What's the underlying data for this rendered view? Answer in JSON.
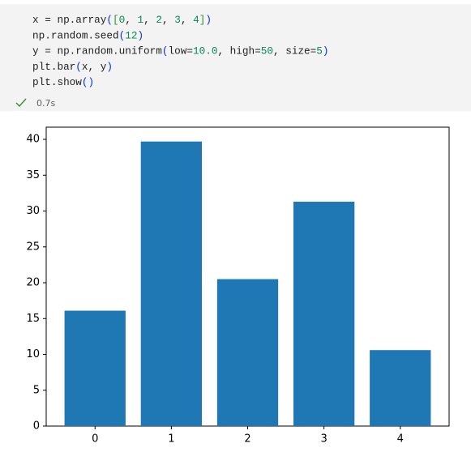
{
  "code": {
    "lines": [
      [
        {
          "text": "x = np.array",
          "color": "#1f1f1f"
        },
        {
          "text": "(",
          "color": "#0431fa"
        },
        {
          "text": "[",
          "color": "#319331"
        },
        {
          "text": "0",
          "color": "#098658"
        },
        {
          "text": ", ",
          "color": "#1f1f1f"
        },
        {
          "text": "1",
          "color": "#098658"
        },
        {
          "text": ", ",
          "color": "#1f1f1f"
        },
        {
          "text": "2",
          "color": "#098658"
        },
        {
          "text": ", ",
          "color": "#1f1f1f"
        },
        {
          "text": "3",
          "color": "#098658"
        },
        {
          "text": ", ",
          "color": "#1f1f1f"
        },
        {
          "text": "4",
          "color": "#098658"
        },
        {
          "text": "]",
          "color": "#319331"
        },
        {
          "text": ")",
          "color": "#0431fa"
        }
      ],
      [
        {
          "text": "np.random.seed",
          "color": "#1f1f1f"
        },
        {
          "text": "(",
          "color": "#0431fa"
        },
        {
          "text": "12",
          "color": "#098658"
        },
        {
          "text": ")",
          "color": "#0431fa"
        }
      ],
      [
        {
          "text": "y = np.random.uniform",
          "color": "#1f1f1f"
        },
        {
          "text": "(",
          "color": "#0431fa"
        },
        {
          "text": "low=",
          "color": "#1f1f1f"
        },
        {
          "text": "10.0",
          "color": "#098658"
        },
        {
          "text": ", high=",
          "color": "#1f1f1f"
        },
        {
          "text": "50",
          "color": "#098658"
        },
        {
          "text": ", size=",
          "color": "#1f1f1f"
        },
        {
          "text": "5",
          "color": "#098658"
        },
        {
          "text": ")",
          "color": "#0431fa"
        }
      ],
      [
        {
          "text": "plt.bar",
          "color": "#1f1f1f"
        },
        {
          "text": "(",
          "color": "#0431fa"
        },
        {
          "text": "x, y",
          "color": "#1f1f1f"
        },
        {
          "text": ")",
          "color": "#0431fa"
        }
      ],
      [
        {
          "text": "plt.show",
          "color": "#1f1f1f"
        },
        {
          "text": "()",
          "color": "#0431fa"
        }
      ]
    ],
    "duration": "0.7s"
  },
  "chart_data": {
    "type": "bar",
    "x": [
      0,
      1,
      2,
      3,
      4
    ],
    "values": [
      16.1,
      39.7,
      20.5,
      31.3,
      10.6
    ],
    "color": "#1f77b4",
    "xlim": [
      -0.64,
      4.64
    ],
    "xticks": [
      0,
      1,
      2,
      3,
      4
    ],
    "ylim": [
      0,
      41.7
    ],
    "yticks": [
      0,
      5,
      10,
      15,
      20,
      25,
      30,
      35,
      40
    ]
  }
}
